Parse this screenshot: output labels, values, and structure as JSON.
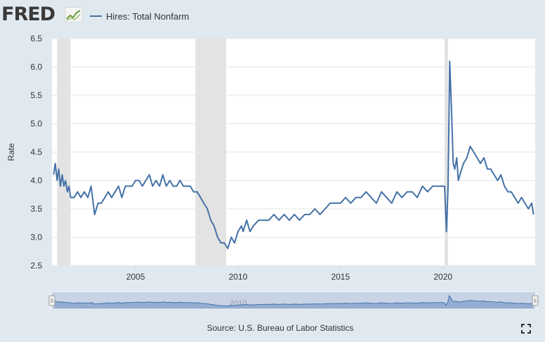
{
  "header": {
    "logo_text": "FRED",
    "legend_label": "Hires: Total Nonfarm"
  },
  "footer": {
    "source": "Source: U.S. Bureau of Labor Statistics"
  },
  "icons": {
    "logo": "trend-chart-icon",
    "fullscreen": "fullscreen-icon"
  },
  "colors": {
    "series": "#4572a7",
    "background": "#e1e9f0",
    "plot_background": "#ffffff",
    "recession": "#e3e3e3"
  },
  "chart_data": {
    "type": "line",
    "title": "",
    "xlabel": "",
    "ylabel": "Rate",
    "xlim": [
      2000.92,
      2024.5
    ],
    "ylim": [
      2.5,
      6.5
    ],
    "yticks": [
      "2.5",
      "3.0",
      "3.5",
      "4.0",
      "4.5",
      "5.0",
      "5.5",
      "6.0",
      "6.5"
    ],
    "xticks": [
      "2005",
      "2010",
      "2015",
      "2020"
    ],
    "grid": "horizontal",
    "recessions": [
      [
        2001.17,
        2001.83
      ],
      [
        2007.92,
        2009.42
      ],
      [
        2020.08,
        2020.25
      ]
    ],
    "navigator_label": "2010",
    "series": [
      {
        "name": "Hires: Total Nonfarm",
        "x": [
          2001.0,
          2001.08,
          2001.17,
          2001.25,
          2001.33,
          2001.42,
          2001.5,
          2001.58,
          2001.67,
          2001.75,
          2001.83,
          2002.0,
          2002.17,
          2002.33,
          2002.5,
          2002.67,
          2002.83,
          2003.0,
          2003.17,
          2003.33,
          2003.5,
          2003.67,
          2003.83,
          2004.0,
          2004.17,
          2004.33,
          2004.5,
          2004.67,
          2004.83,
          2005.0,
          2005.17,
          2005.33,
          2005.5,
          2005.67,
          2005.83,
          2006.0,
          2006.17,
          2006.33,
          2006.5,
          2006.67,
          2006.83,
          2007.0,
          2007.17,
          2007.33,
          2007.5,
          2007.67,
          2007.83,
          2008.0,
          2008.17,
          2008.33,
          2008.5,
          2008.67,
          2008.83,
          2009.0,
          2009.17,
          2009.33,
          2009.5,
          2009.67,
          2009.83,
          2010.0,
          2010.17,
          2010.25,
          2010.42,
          2010.58,
          2010.75,
          2011.0,
          2011.25,
          2011.5,
          2011.75,
          2012.0,
          2012.25,
          2012.5,
          2012.75,
          2013.0,
          2013.25,
          2013.5,
          2013.75,
          2014.0,
          2014.25,
          2014.5,
          2014.75,
          2015.0,
          2015.25,
          2015.5,
          2015.75,
          2016.0,
          2016.25,
          2016.5,
          2016.75,
          2017.0,
          2017.25,
          2017.5,
          2017.75,
          2018.0,
          2018.25,
          2018.5,
          2018.75,
          2019.0,
          2019.25,
          2019.5,
          2019.75,
          2020.0,
          2020.08,
          2020.17,
          2020.25,
          2020.33,
          2020.42,
          2020.5,
          2020.58,
          2020.67,
          2020.75,
          2020.83,
          2021.0,
          2021.17,
          2021.33,
          2021.5,
          2021.67,
          2021.83,
          2022.0,
          2022.17,
          2022.33,
          2022.5,
          2022.67,
          2022.83,
          2023.0,
          2023.17,
          2023.33,
          2023.5,
          2023.67,
          2023.83,
          2024.0,
          2024.17,
          2024.33,
          2024.42
        ],
        "y": [
          4.1,
          4.3,
          4.0,
          4.2,
          3.9,
          4.1,
          3.9,
          4.0,
          3.8,
          3.9,
          3.7,
          3.7,
          3.8,
          3.7,
          3.8,
          3.7,
          3.9,
          3.4,
          3.6,
          3.6,
          3.7,
          3.8,
          3.7,
          3.8,
          3.9,
          3.7,
          3.9,
          3.9,
          3.9,
          4.0,
          4.0,
          3.9,
          4.0,
          4.1,
          3.9,
          4.0,
          3.9,
          4.1,
          3.9,
          4.0,
          3.9,
          3.9,
          4.0,
          3.9,
          3.9,
          3.9,
          3.8,
          3.8,
          3.7,
          3.6,
          3.5,
          3.3,
          3.2,
          3.0,
          2.9,
          2.9,
          2.8,
          3.0,
          2.9,
          3.1,
          3.2,
          3.1,
          3.3,
          3.1,
          3.2,
          3.3,
          3.3,
          3.3,
          3.4,
          3.3,
          3.4,
          3.3,
          3.4,
          3.3,
          3.4,
          3.4,
          3.5,
          3.4,
          3.5,
          3.6,
          3.6,
          3.6,
          3.7,
          3.6,
          3.7,
          3.7,
          3.8,
          3.7,
          3.6,
          3.8,
          3.7,
          3.6,
          3.8,
          3.7,
          3.8,
          3.8,
          3.7,
          3.9,
          3.8,
          3.9,
          3.9,
          3.9,
          3.9,
          3.1,
          3.9,
          6.1,
          5.2,
          4.3,
          4.2,
          4.4,
          4.0,
          4.1,
          4.3,
          4.4,
          4.6,
          4.5,
          4.4,
          4.3,
          4.4,
          4.2,
          4.2,
          4.1,
          4.0,
          4.1,
          3.9,
          3.8,
          3.8,
          3.7,
          3.6,
          3.7,
          3.6,
          3.5,
          3.6,
          3.4
        ]
      }
    ]
  }
}
